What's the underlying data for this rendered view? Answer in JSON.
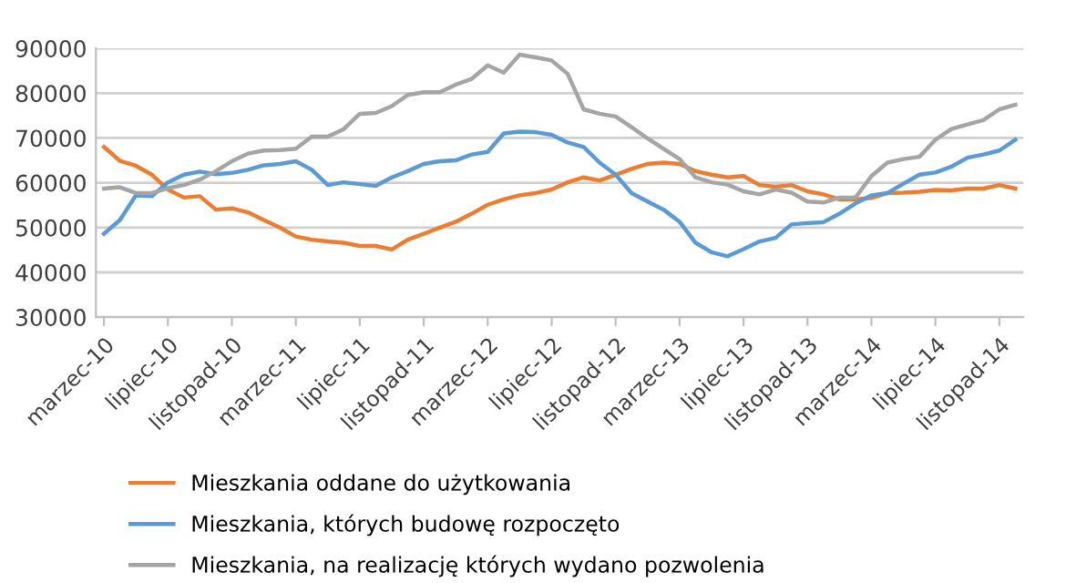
{
  "chart_data": {
    "type": "line",
    "categories": [
      "marzec-10",
      null,
      null,
      null,
      "lipiec-10",
      null,
      null,
      null,
      "listopad-10",
      null,
      null,
      null,
      "marzec-11",
      null,
      null,
      null,
      "lipiec-11",
      null,
      null,
      null,
      "listopad-11",
      null,
      null,
      null,
      "marzec-12",
      null,
      null,
      null,
      "lipiec-12",
      null,
      null,
      null,
      "listopad-12",
      null,
      null,
      null,
      "marzec-13",
      null,
      null,
      null,
      "lipiec-13",
      null,
      null,
      null,
      "listopad-13",
      null,
      null,
      null,
      "marzec-14",
      null,
      null,
      null,
      "lipiec-14",
      null,
      null,
      null,
      "listopad-14",
      null
    ],
    "series": [
      {
        "name": "Mieszkania oddane do użytkowania",
        "color": "#ed7d31",
        "values": [
          68000,
          64900,
          63800,
          61800,
          58500,
          56700,
          57000,
          54000,
          54300,
          53400,
          51700,
          50000,
          48000,
          47300,
          46900,
          46600,
          45900,
          45900,
          45100,
          47300,
          48600,
          50000,
          51300,
          53100,
          55100,
          56300,
          57200,
          57700,
          58500,
          60100,
          61200,
          60500,
          61800,
          63100,
          64200,
          64500,
          64200,
          62600,
          61800,
          61200,
          61500,
          59500,
          59100,
          59500,
          58100,
          57400,
          56300,
          56300,
          56600,
          57700,
          57800,
          58000,
          58400,
          58300,
          58700,
          58700,
          59500,
          58700
        ]
      },
      {
        "name": "Mieszkania, których budowę rozpoczęto",
        "color": "#5b9bd5",
        "values": [
          48600,
          51700,
          57200,
          57000,
          60100,
          61800,
          62500,
          61900,
          62200,
          62900,
          63900,
          64200,
          64800,
          62900,
          59500,
          60100,
          59700,
          59300,
          61200,
          62600,
          64200,
          64800,
          65000,
          66300,
          66900,
          71000,
          71400,
          71300,
          70700,
          69000,
          68000,
          64500,
          61800,
          57700,
          55800,
          54000,
          51300,
          46600,
          44500,
          43600,
          45200,
          46900,
          47700,
          50700,
          51000,
          51200,
          53100,
          55400,
          57200,
          57700,
          59800,
          61800,
          62300,
          63600,
          65600,
          66300,
          67200,
          69600
        ]
      },
      {
        "name": "Mieszkania, na realizację których wydano pozwolenia",
        "color": "#a5a5a5",
        "values": [
          58700,
          59000,
          57700,
          57700,
          58800,
          59500,
          60700,
          62600,
          64800,
          66500,
          67200,
          67300,
          67600,
          70300,
          70300,
          72000,
          75400,
          75600,
          77100,
          79600,
          80200,
          80200,
          81900,
          83200,
          86200,
          84600,
          88600,
          88000,
          87300,
          84300,
          76400,
          75400,
          74800,
          72400,
          69900,
          67600,
          65300,
          61200,
          60100,
          59600,
          58100,
          57400,
          58500,
          57800,
          55800,
          55600,
          56700,
          56700,
          61500,
          64500,
          65300,
          65800,
          69600,
          72000,
          73000,
          74000,
          76400,
          77400
        ]
      }
    ],
    "ylim": [
      30000,
      90000
    ],
    "yticks": [
      30000,
      40000,
      50000,
      60000,
      70000,
      80000,
      90000
    ],
    "grid": "y",
    "legend": "bottom",
    "marker": "none",
    "line_style": "solid"
  }
}
